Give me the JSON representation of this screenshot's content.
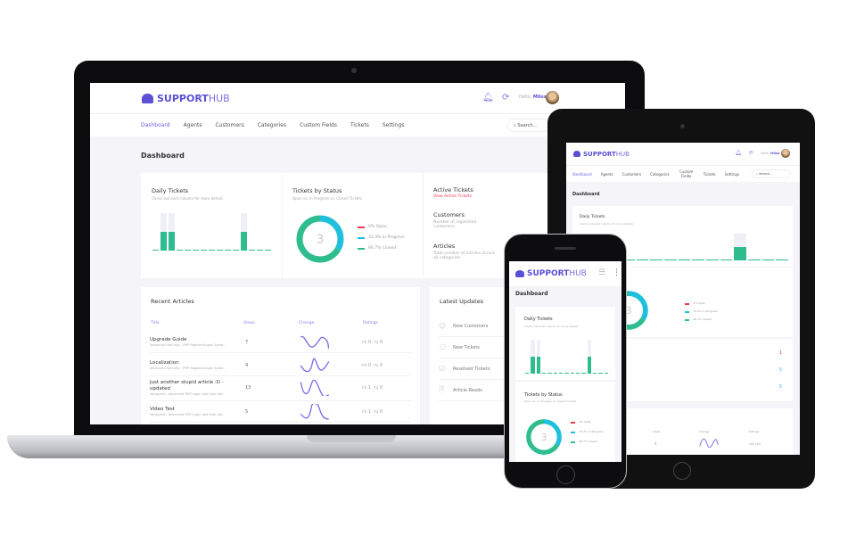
{
  "brand": {
    "name_bold": "SUPPORT",
    "name_light": "HUB",
    "accent": "#5b4fd6"
  },
  "user": {
    "greeting": "Hello,",
    "name": "Milos"
  },
  "nav": {
    "items": [
      "Dashboard",
      "Agents",
      "Customers",
      "Categories",
      "Custom Fields",
      "Tickets",
      "Settings"
    ],
    "active": "Dashboard",
    "search_placeholder": "Search..."
  },
  "page_title": "Dashboard",
  "daily_tickets": {
    "title": "Daily Tickets",
    "subtitle": "Check out each column for more details",
    "values": [
      0,
      1,
      1,
      0,
      0,
      0,
      0,
      0,
      0,
      0,
      0,
      1,
      0,
      0,
      0
    ],
    "max": 2,
    "color": "#2fbd8f"
  },
  "tablet_daily_values": [
    0,
    0,
    0,
    0,
    0,
    0,
    0,
    0,
    0,
    0,
    0,
    1,
    0,
    0,
    0
  ],
  "tickets_by_status": {
    "title": "Tickets by Status",
    "subtitle": "Open vs. In Progress vs. Closed Tickets",
    "total": "3",
    "legend": [
      {
        "label": "0% Open",
        "color": "#f0384f",
        "value": 0
      },
      {
        "label": "33.3% In Progress",
        "color": "#1fc0dc",
        "value": 33.3
      },
      {
        "label": "66.7% Closed",
        "color": "#2fbd8f",
        "value": 66.7
      }
    ]
  },
  "stats": [
    {
      "title": "Active Tickets",
      "link": "View Active Tickets",
      "value": "1",
      "value_color": "#f0384f"
    },
    {
      "title": "Customers",
      "desc": "Number of registered customers",
      "value": "5",
      "value_color": "#1fc0dc"
    },
    {
      "title": "Articles",
      "desc": "Total number of articles across all categories",
      "value": "5",
      "value_color": "#1fc0dc"
    }
  ],
  "recent_articles": {
    "title": "Recent Articles",
    "columns": [
      "Title",
      "Views",
      "Change",
      "Ratings"
    ],
    "rows": [
      {
        "title": "Upgrade Guide",
        "subtitle": "Advanced Security - PHP Register/Login Syste...",
        "views": "7",
        "up": "0",
        "down": "0"
      },
      {
        "title": "Localization",
        "subtitle": "Advanced Security - PHP Register/Login Syste...",
        "views": "4",
        "up": "0",
        "down": "0"
      },
      {
        "title": "Just another stupid article :D - updated",
        "subtitle": "Vanguard - Advanced PHP Login and User Ma...",
        "views": "13",
        "up": "1",
        "down": "0"
      },
      {
        "title": "Video Test",
        "subtitle": "Vanguard - Advanced PHP Login and User Ma...",
        "views": "5",
        "up": "1",
        "down": "0"
      }
    ]
  },
  "latest_updates": {
    "title": "Latest Updates",
    "items": [
      {
        "label": "New Customers",
        "icon": "user-icon"
      },
      {
        "label": "New Tickets",
        "icon": "chat-icon"
      },
      {
        "label": "Resolved Tickets",
        "icon": "check-icon"
      },
      {
        "label": "Article Reads",
        "icon": "document-icon"
      }
    ]
  }
}
